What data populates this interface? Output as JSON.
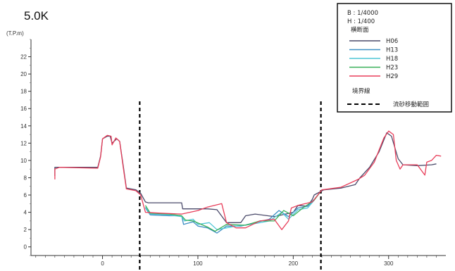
{
  "chart_data": {
    "type": "line",
    "title": "5.0K",
    "ylabel": "(T.P.m)",
    "xlabel": "",
    "xlim": [
      -75,
      360
    ],
    "ylim": [
      -1,
      24
    ],
    "x_ticks": [
      0,
      100,
      200,
      300
    ],
    "y_ticks": [
      0,
      2,
      4,
      6,
      8,
      10,
      12,
      14,
      16,
      18,
      20,
      22
    ],
    "grid": false,
    "legend_position": "top-right",
    "scale_labels": [
      "B : 1/4000",
      "H : 1/400"
    ],
    "legend_title": "横断面",
    "boundary_heading": "境界線",
    "boundary_label": "流砂移動範囲",
    "boundaries": [
      39,
      229
    ],
    "series": [
      {
        "name": "H06",
        "color": "#4a4a6a",
        "points": [
          [
            -50,
            8.2
          ],
          [
            -50,
            9.2
          ],
          [
            -45,
            9.2
          ],
          [
            -5,
            9.2
          ],
          [
            -2,
            10.5
          ],
          [
            0,
            12.5
          ],
          [
            5,
            12.8
          ],
          [
            8,
            12.8
          ],
          [
            10,
            12.0
          ],
          [
            15,
            12.5
          ],
          [
            18,
            12.2
          ],
          [
            22,
            9.2
          ],
          [
            25,
            6.8
          ],
          [
            35,
            6.6
          ],
          [
            40,
            6.2
          ],
          [
            45,
            5.2
          ],
          [
            48,
            5.1
          ],
          [
            70,
            5.1
          ],
          [
            83,
            5.1
          ],
          [
            84,
            4.4
          ],
          [
            110,
            4.4
          ],
          [
            120,
            4.3
          ],
          [
            130,
            2.8
          ],
          [
            145,
            2.8
          ],
          [
            150,
            3.6
          ],
          [
            160,
            3.8
          ],
          [
            180,
            3.5
          ],
          [
            200,
            4.0
          ],
          [
            205,
            4.8
          ],
          [
            215,
            4.7
          ],
          [
            220,
            5.5
          ],
          [
            222,
            6.0
          ],
          [
            232,
            6.6
          ],
          [
            250,
            6.8
          ],
          [
            265,
            7.2
          ],
          [
            270,
            8.0
          ],
          [
            280,
            9.2
          ],
          [
            290,
            11.0
          ],
          [
            298,
            13.2
          ],
          [
            303,
            12.8
          ],
          [
            310,
            10.2
          ],
          [
            315,
            9.5
          ],
          [
            330,
            9.4
          ],
          [
            345,
            9.5
          ],
          [
            350,
            9.6
          ]
        ]
      },
      {
        "name": "H13",
        "color": "#3d8fc4",
        "points": [
          [
            45,
            4.5
          ],
          [
            50,
            3.7
          ],
          [
            70,
            3.6
          ],
          [
            83,
            3.6
          ],
          [
            85,
            2.6
          ],
          [
            95,
            2.9
          ],
          [
            100,
            2.4
          ],
          [
            110,
            2.2
          ],
          [
            120,
            1.6
          ],
          [
            130,
            2.4
          ],
          [
            145,
            2.4
          ],
          [
            160,
            2.8
          ],
          [
            175,
            3.2
          ],
          [
            185,
            4.2
          ],
          [
            195,
            3.5
          ],
          [
            205,
            4.5
          ],
          [
            215,
            4.7
          ],
          [
            222,
            5.5
          ]
        ]
      },
      {
        "name": "H18",
        "color": "#4fc6d6",
        "points": [
          [
            45,
            4.6
          ],
          [
            50,
            3.8
          ],
          [
            70,
            3.7
          ],
          [
            83,
            3.5
          ],
          [
            86,
            3.0
          ],
          [
            95,
            3.2
          ],
          [
            100,
            2.6
          ],
          [
            112,
            2.8
          ],
          [
            120,
            2.0
          ],
          [
            130,
            2.2
          ],
          [
            140,
            2.4
          ],
          [
            155,
            2.6
          ],
          [
            175,
            3.0
          ],
          [
            188,
            4.0
          ],
          [
            195,
            3.2
          ],
          [
            205,
            4.3
          ],
          [
            215,
            4.5
          ],
          [
            222,
            5.4
          ]
        ]
      },
      {
        "name": "H23",
        "color": "#3bb05a",
        "points": [
          [
            45,
            4.8
          ],
          [
            50,
            3.9
          ],
          [
            70,
            3.8
          ],
          [
            83,
            3.6
          ],
          [
            87,
            3.1
          ],
          [
            95,
            3.0
          ],
          [
            110,
            2.3
          ],
          [
            118,
            1.8
          ],
          [
            130,
            2.6
          ],
          [
            150,
            2.5
          ],
          [
            165,
            3.0
          ],
          [
            180,
            3.0
          ],
          [
            190,
            4.2
          ],
          [
            200,
            3.6
          ],
          [
            210,
            4.5
          ],
          [
            222,
            5.4
          ],
          [
            228,
            6.3
          ]
        ]
      },
      {
        "name": "H29",
        "color": "#e83e5a",
        "points": [
          [
            -50,
            7.8
          ],
          [
            -50,
            9.0
          ],
          [
            -45,
            9.2
          ],
          [
            -5,
            9.1
          ],
          [
            -2,
            10.4
          ],
          [
            0,
            12.5
          ],
          [
            5,
            12.9
          ],
          [
            9,
            12.8
          ],
          [
            10,
            11.8
          ],
          [
            14,
            12.6
          ],
          [
            18,
            12.2
          ],
          [
            22,
            9.0
          ],
          [
            25,
            6.7
          ],
          [
            35,
            6.5
          ],
          [
            40,
            6.0
          ],
          [
            45,
            4.0
          ],
          [
            60,
            3.9
          ],
          [
            83,
            3.8
          ],
          [
            100,
            4.2
          ],
          [
            110,
            4.6
          ],
          [
            125,
            5.0
          ],
          [
            130,
            2.8
          ],
          [
            140,
            2.2
          ],
          [
            150,
            2.2
          ],
          [
            165,
            3.0
          ],
          [
            180,
            3.2
          ],
          [
            188,
            2.0
          ],
          [
            195,
            3.0
          ],
          [
            198,
            4.5
          ],
          [
            205,
            4.8
          ],
          [
            220,
            5.2
          ],
          [
            230,
            6.6
          ],
          [
            250,
            6.9
          ],
          [
            268,
            7.8
          ],
          [
            275,
            8.3
          ],
          [
            285,
            9.8
          ],
          [
            295,
            12.6
          ],
          [
            300,
            13.4
          ],
          [
            305,
            13.0
          ],
          [
            308,
            10.0
          ],
          [
            312,
            9.0
          ],
          [
            315,
            9.5
          ],
          [
            330,
            9.5
          ],
          [
            338,
            8.3
          ],
          [
            340,
            9.8
          ],
          [
            345,
            10.0
          ],
          [
            350,
            10.6
          ],
          [
            355,
            10.5
          ]
        ]
      }
    ]
  }
}
